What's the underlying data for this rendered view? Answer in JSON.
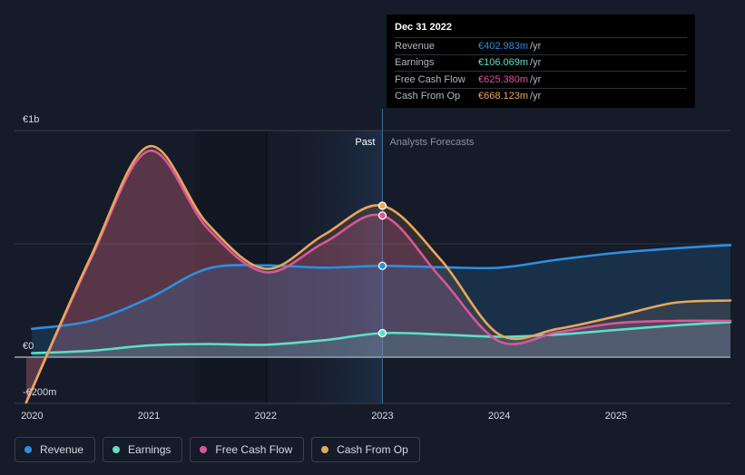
{
  "chart_data": {
    "type": "area",
    "title": "",
    "y_axis_labels": [
      "€1b",
      "€0",
      "-€200m"
    ],
    "ylim": [
      -200,
      1000
    ],
    "xlim": [
      2019.85,
      2025.98
    ],
    "x_ticks": [
      "2020",
      "2021",
      "2022",
      "2023",
      "2024",
      "2025"
    ],
    "x_tick_values": [
      2020,
      2021,
      2022,
      2023,
      2024,
      2025
    ],
    "divider": {
      "x": 2023,
      "past_label": "Past",
      "forecast_label": "Analysts Forecasts"
    },
    "series": [
      {
        "name": "Revenue",
        "color": "#2d8fe0",
        "x": [
          2020,
          2020.5,
          2021,
          2021.5,
          2022,
          2022.5,
          2023,
          2023.5,
          2024,
          2024.5,
          2025,
          2025.5,
          2026
        ],
        "values": [
          125,
          160,
          260,
          390,
          405,
          395,
          403,
          397,
          395,
          430,
          460,
          480,
          495
        ]
      },
      {
        "name": "Earnings",
        "color": "#5ee0c7",
        "x": [
          2020,
          2020.5,
          2021,
          2021.5,
          2022,
          2022.5,
          2023,
          2023.5,
          2024,
          2024.5,
          2025,
          2025.5,
          2026
        ],
        "values": [
          18,
          28,
          52,
          58,
          55,
          75,
          106,
          100,
          90,
          100,
          120,
          140,
          155
        ]
      },
      {
        "name": "Free Cash Flow",
        "color": "#d9579a",
        "x": [
          2019.95,
          2020.5,
          2021,
          2021.5,
          2022,
          2022.5,
          2023,
          2023.5,
          2024,
          2024.5,
          2025,
          2025.5,
          2026
        ],
        "values": [
          -200,
          430,
          910,
          570,
          375,
          505,
          625,
          350,
          70,
          110,
          150,
          160,
          160
        ]
      },
      {
        "name": "Cash From Op",
        "color": "#e9a65a",
        "x": [
          2019.95,
          2020.5,
          2021,
          2021.5,
          2022,
          2022.5,
          2023,
          2023.5,
          2024,
          2024.5,
          2025,
          2025.5,
          2026
        ],
        "values": [
          -200,
          440,
          930,
          590,
          390,
          540,
          668,
          430,
          100,
          125,
          180,
          240,
          250
        ]
      }
    ],
    "highlight_x": 2023
  },
  "tooltip": {
    "date": "Dec 31 2022",
    "unit": "/yr",
    "rows": [
      {
        "label": "Revenue",
        "value": "€402.983m",
        "color": "#2d8fe0"
      },
      {
        "label": "Earnings",
        "value": "€106.069m",
        "color": "#5ee0c7"
      },
      {
        "label": "Free Cash Flow",
        "value": "€625.380m",
        "color": "#d9579a"
      },
      {
        "label": "Cash From Op",
        "value": "€668.123m",
        "color": "#e9a65a"
      }
    ]
  },
  "legend": [
    {
      "label": "Revenue",
      "color": "#2d8fe0"
    },
    {
      "label": "Earnings",
      "color": "#5ee0c7"
    },
    {
      "label": "Free Cash Flow",
      "color": "#d9579a"
    },
    {
      "label": "Cash From Op",
      "color": "#e9a65a"
    }
  ]
}
